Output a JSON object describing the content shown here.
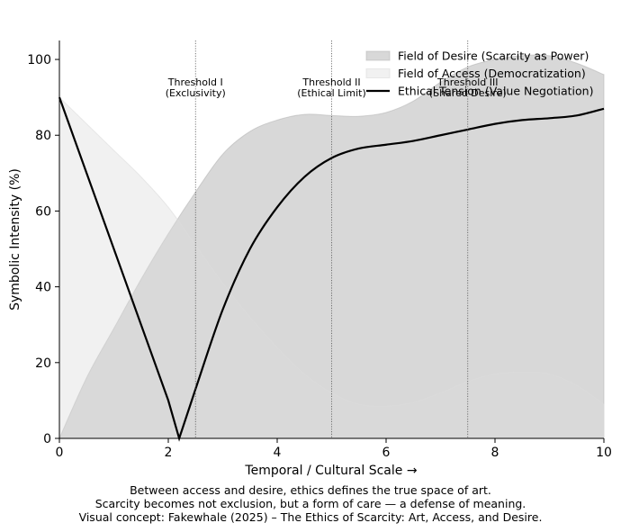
{
  "chart_data": {
    "type": "area",
    "xlabel": "Temporal / Cultural Scale →",
    "ylabel": "Symbolic Intensity (%)",
    "xlim": [
      0,
      10
    ],
    "ylim": [
      0,
      105
    ],
    "xticks": [
      "0",
      "2",
      "4",
      "6",
      "8",
      "10"
    ],
    "yticks": [
      "0",
      "20",
      "40",
      "60",
      "80",
      "100"
    ],
    "grid": false,
    "legend_position": "top-right",
    "series": [
      {
        "name": "Field of Desire (Scarcity as Power)",
        "kind": "area",
        "color": "#b8b8b8",
        "x": [
          0,
          0.5,
          1,
          1.5,
          2,
          2.5,
          3,
          3.5,
          4,
          4.5,
          5,
          5.5,
          6,
          6.5,
          7,
          7.5,
          8,
          8.5,
          9,
          9.5,
          10
        ],
        "y": [
          0,
          16,
          29,
          42,
          54,
          65,
          75,
          81,
          84,
          85.5,
          85.2,
          85,
          86,
          89,
          94,
          98,
          100,
          101,
          101,
          99,
          96
        ]
      },
      {
        "name": "Field of Access (Democratization)",
        "kind": "area",
        "color": "#dcdcdc",
        "x": [
          0,
          0.5,
          1,
          1.5,
          2,
          2.5,
          3,
          3.5,
          4,
          4.5,
          5,
          5.5,
          6,
          6.5,
          7,
          7.5,
          8,
          8.5,
          9,
          9.5,
          10
        ],
        "y": [
          90,
          83,
          76,
          69,
          61,
          51,
          41,
          32,
          24,
          17,
          12,
          9,
          8.5,
          9.5,
          12,
          15,
          17,
          17.5,
          17,
          14,
          9
        ]
      },
      {
        "name": "Ethical Tension (Value Negotiation)",
        "kind": "line",
        "color": "#000000",
        "x": [
          0,
          0.5,
          1,
          1.5,
          2,
          2.2,
          2.5,
          3,
          3.5,
          4,
          4.5,
          5,
          5.5,
          6,
          6.5,
          7,
          7.5,
          8,
          8.5,
          9,
          9.5,
          10
        ],
        "y": [
          90,
          70,
          50,
          30,
          10,
          0,
          13,
          34,
          50,
          61,
          69,
          74,
          76.5,
          77.5,
          78.5,
          80,
          81.5,
          83,
          84,
          84.5,
          85.2,
          87
        ]
      }
    ],
    "thresholds": [
      {
        "x": 2.5,
        "label_line1": "Threshold I",
        "label_line2": "(Exclusivity)"
      },
      {
        "x": 5,
        "label_line1": "Threshold II",
        "label_line2": "(Ethical Limit)"
      },
      {
        "x": 7.5,
        "label_line1": "Threshold III",
        "label_line2": "(Shared Desire)"
      }
    ]
  },
  "caption": {
    "line1": "Between access and desire, ethics defines the true space of art.",
    "line2": "Scarcity becomes not exclusion, but a form of care — a defense of meaning.",
    "line3": "Visual concept: Fakewhale (2025) – The Ethics of Scarcity: Art, Access, and Desire."
  }
}
